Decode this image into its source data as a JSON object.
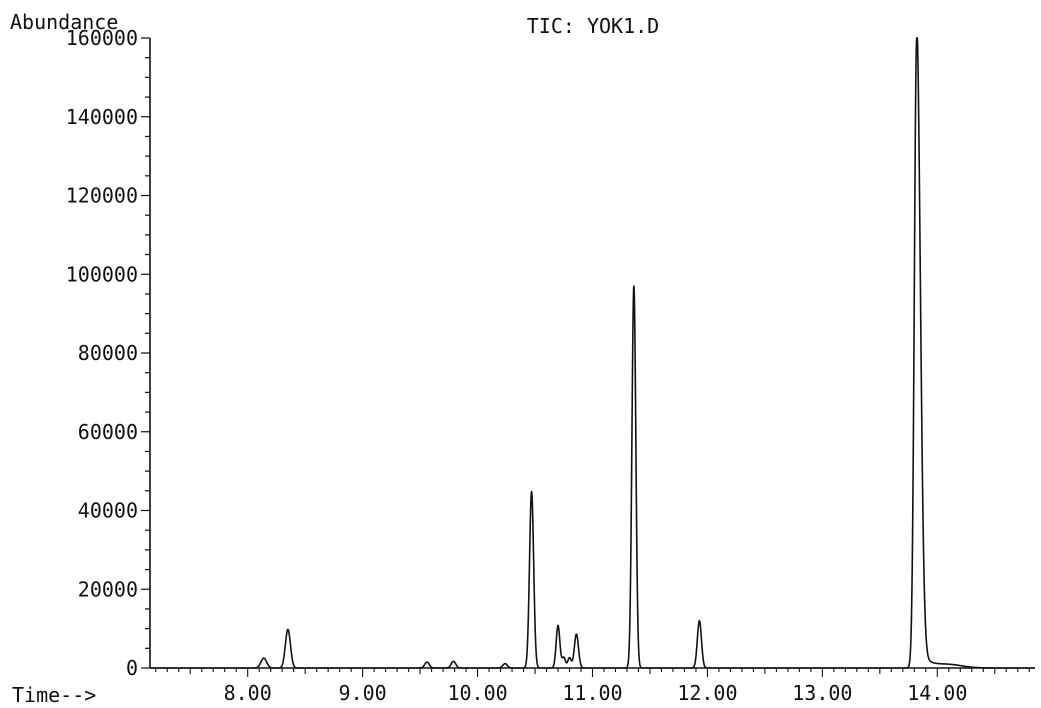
{
  "chart_data": {
    "type": "line",
    "title": "TIC: YOK1.D",
    "ylabel": "Abundance",
    "xlabel": "Time-->",
    "xlim": [
      7.15,
      14.85
    ],
    "ylim": [
      0,
      160000
    ],
    "yticks": [
      0,
      20000,
      40000,
      60000,
      80000,
      100000,
      120000,
      140000,
      160000
    ],
    "yticklabels": [
      "0",
      "20000",
      "40000",
      "60000",
      "80000",
      "100000",
      "120000",
      "140000",
      "160000"
    ],
    "xticks": [
      8,
      9,
      10,
      11,
      12,
      13,
      14
    ],
    "xticklabels": [
      "8.00",
      "9.00",
      "10.00",
      "11.00",
      "12.00",
      "13.00",
      "14.00"
    ],
    "grid": false,
    "color": "#111111",
    "peaks": [
      {
        "rt": 8.14,
        "height": 2500,
        "width": 0.025
      },
      {
        "rt": 8.35,
        "height": 9800,
        "width": 0.022
      },
      {
        "rt": 9.56,
        "height": 1500,
        "width": 0.02
      },
      {
        "rt": 9.79,
        "height": 1700,
        "width": 0.02
      },
      {
        "rt": 10.24,
        "height": 1100,
        "width": 0.02
      },
      {
        "rt": 10.47,
        "height": 44800,
        "width": 0.018
      },
      {
        "rt": 10.7,
        "height": 10800,
        "width": 0.016
      },
      {
        "rt": 10.75,
        "height": 2700,
        "width": 0.015
      },
      {
        "rt": 10.8,
        "height": 2600,
        "width": 0.015
      },
      {
        "rt": 10.86,
        "height": 8600,
        "width": 0.018
      },
      {
        "rt": 11.36,
        "height": 97000,
        "width": 0.017
      },
      {
        "rt": 11.93,
        "height": 12000,
        "width": 0.018
      },
      {
        "rt": 13.82,
        "height": 159000,
        "width": 0.02
      },
      {
        "rt": 14.1,
        "height": 800,
        "width": 0.12
      }
    ]
  }
}
